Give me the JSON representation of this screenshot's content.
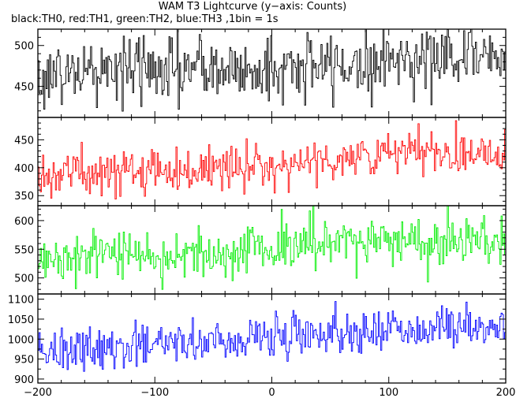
{
  "chart_data": {
    "type": "line",
    "title": "WAM T3 Lightcurve (y−axis: Counts)",
    "subtitle": "black:TH0, red:TH1, green:TH2, blue:TH3 ,1bin = 1s",
    "xlim": [
      -200,
      200
    ],
    "x_ticks": [
      -200,
      -100,
      0,
      100,
      200
    ],
    "x_tick_labels": [
      "−200",
      "−100",
      "0",
      "100",
      "200"
    ],
    "bin_size_s": 1,
    "grid": false,
    "panels": [
      {
        "series_name": "TH0",
        "color": "#000000",
        "ylim": [
          412,
          520
        ],
        "y_ticks": [
          450,
          500
        ],
        "y_tick_labels": [
          "450",
          "500"
        ],
        "trend": {
          "start": 462,
          "end": 487
        },
        "noise_sd": 21
      },
      {
        "series_name": "TH1",
        "color": "#ff0000",
        "ylim": [
          332,
          490
        ],
        "y_ticks": [
          350,
          400,
          450
        ],
        "y_tick_labels": [
          "350",
          "400",
          "450"
        ],
        "trend": {
          "start": 383,
          "end": 432
        },
        "noise_sd": 20
      },
      {
        "series_name": "TH2",
        "color": "#00ee00",
        "ylim": [
          472,
          626
        ],
        "y_ticks": [
          500,
          550,
          600
        ],
        "y_tick_labels": [
          "500",
          "550",
          "600"
        ],
        "trend": {
          "start": 533,
          "end": 572
        },
        "noise_sd": 22
      },
      {
        "series_name": "TH3",
        "color": "#0000ff",
        "ylim": [
          890,
          1113
        ],
        "y_ticks": [
          900,
          950,
          1000,
          1050,
          1100
        ],
        "y_tick_labels": [
          "900",
          "950",
          "1000",
          "1050",
          "1100"
        ],
        "trend": {
          "start": 968,
          "end": 1042
        },
        "noise_sd": 27
      }
    ]
  }
}
